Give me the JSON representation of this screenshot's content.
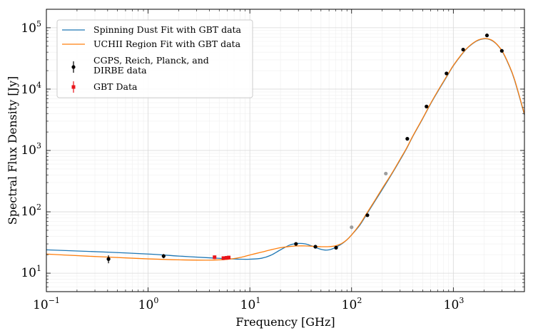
{
  "chart_data": {
    "type": "line",
    "title": "",
    "xlabel": "Frequency [GHz]",
    "ylabel": "Spectral Flux Density [Jy]",
    "xscale": "log",
    "yscale": "log",
    "xlim": [
      0.1,
      5000
    ],
    "ylim": [
      5,
      200000
    ],
    "grid": true,
    "legend_position": "top-left",
    "x_ticks": [
      {
        "value": 0.1,
        "base": "10",
        "exp": "−1"
      },
      {
        "value": 1,
        "base": "10",
        "exp": "0"
      },
      {
        "value": 10,
        "base": "10",
        "exp": "1"
      },
      {
        "value": 100,
        "base": "10",
        "exp": "2"
      },
      {
        "value": 1000,
        "base": "10",
        "exp": "3"
      }
    ],
    "y_ticks": [
      {
        "value": 10,
        "base": "10",
        "exp": "1"
      },
      {
        "value": 100,
        "base": "10",
        "exp": "2"
      },
      {
        "value": 1000,
        "base": "10",
        "exp": "3"
      },
      {
        "value": 10000,
        "base": "10",
        "exp": "4"
      },
      {
        "value": 100000,
        "base": "10",
        "exp": "5"
      }
    ],
    "series": [
      {
        "name": "Spinning Dust Fit with GBT data",
        "kind": "line",
        "color": "#1f77b4",
        "x": [
          0.1,
          0.2,
          0.4,
          1,
          2,
          4,
          6,
          8,
          10,
          13,
          16,
          20,
          25,
          30,
          35,
          40,
          45,
          50,
          55,
          60,
          65,
          70,
          80,
          90,
          100,
          120,
          140,
          170,
          200,
          250,
          300,
          350,
          400,
          500,
          600,
          700,
          800,
          900,
          1000,
          1200,
          1400,
          1700,
          2000,
          2300,
          2600,
          3000,
          3500,
          4000,
          5000
        ],
        "y": [
          24,
          23,
          22,
          20.5,
          19,
          17.8,
          17.2,
          16.9,
          16.9,
          17.5,
          19.5,
          24,
          29,
          30.5,
          30,
          28,
          26,
          24.5,
          23.8,
          24,
          25,
          26.5,
          30,
          35,
          42,
          60,
          90,
          150,
          230,
          420,
          700,
          1100,
          1700,
          3300,
          5800,
          9000,
          13000,
          18000,
          24000,
          36000,
          48000,
          61000,
          66000,
          64000,
          56000,
          42000,
          25000,
          14000,
          3800
        ]
      },
      {
        "name": "UCHII Region Fit with GBT data",
        "kind": "line",
        "color": "#ff7f0e",
        "x": [
          0.1,
          0.2,
          0.4,
          1,
          2,
          4,
          6,
          8,
          10,
          13,
          16,
          20,
          25,
          30,
          35,
          40,
          45,
          50,
          55,
          60,
          65,
          70,
          80,
          90,
          100,
          120,
          140,
          170,
          200,
          250,
          300,
          350,
          400,
          500,
          600,
          700,
          800,
          900,
          1000,
          1200,
          1400,
          1700,
          2000,
          2300,
          2600,
          3000,
          3500,
          4000,
          5000
        ],
        "y": [
          20.5,
          19.3,
          18.3,
          17.1,
          16.5,
          16.3,
          16.8,
          18,
          19.8,
          22,
          24,
          26,
          27.3,
          27.8,
          27.8,
          27.5,
          27.2,
          27,
          27,
          27.1,
          27.4,
          28,
          30.5,
          35,
          42,
          62,
          93,
          155,
          240,
          430,
          720,
          1120,
          1720,
          3350,
          5900,
          9200,
          13300,
          18300,
          24300,
          36500,
          48500,
          61500,
          66500,
          64500,
          56500,
          42500,
          25500,
          14300,
          3900
        ]
      },
      {
        "name": "CGPS, Reich, Planck, and DIRBE data",
        "kind": "errorbar",
        "color": "#000000",
        "x": [
          0.408,
          1.42,
          28.4,
          44.1,
          70.4,
          143,
          353,
          545,
          857,
          1249,
          2141,
          2998
        ],
        "y": [
          17,
          19,
          30,
          27,
          26,
          88,
          1550,
          5200,
          18000,
          44000,
          75000,
          42000
        ],
        "yerr": [
          2.5,
          1.5,
          1,
          1,
          1,
          3,
          40,
          100,
          300,
          600,
          1200,
          700
        ]
      },
      {
        "name": "GBT Data",
        "kind": "errorbar",
        "color": "#e8151b",
        "x": [
          4.5,
          5.5,
          5.9,
          6.2
        ],
        "y": [
          18.2,
          17.6,
          17.8,
          18
        ],
        "yerr": [
          1.2,
          1.2,
          1.2,
          1.2
        ]
      },
      {
        "name": "",
        "kind": "points",
        "color": "#9e9e9e",
        "x": [
          100,
          217
        ],
        "y": [
          56,
          420
        ]
      }
    ]
  }
}
